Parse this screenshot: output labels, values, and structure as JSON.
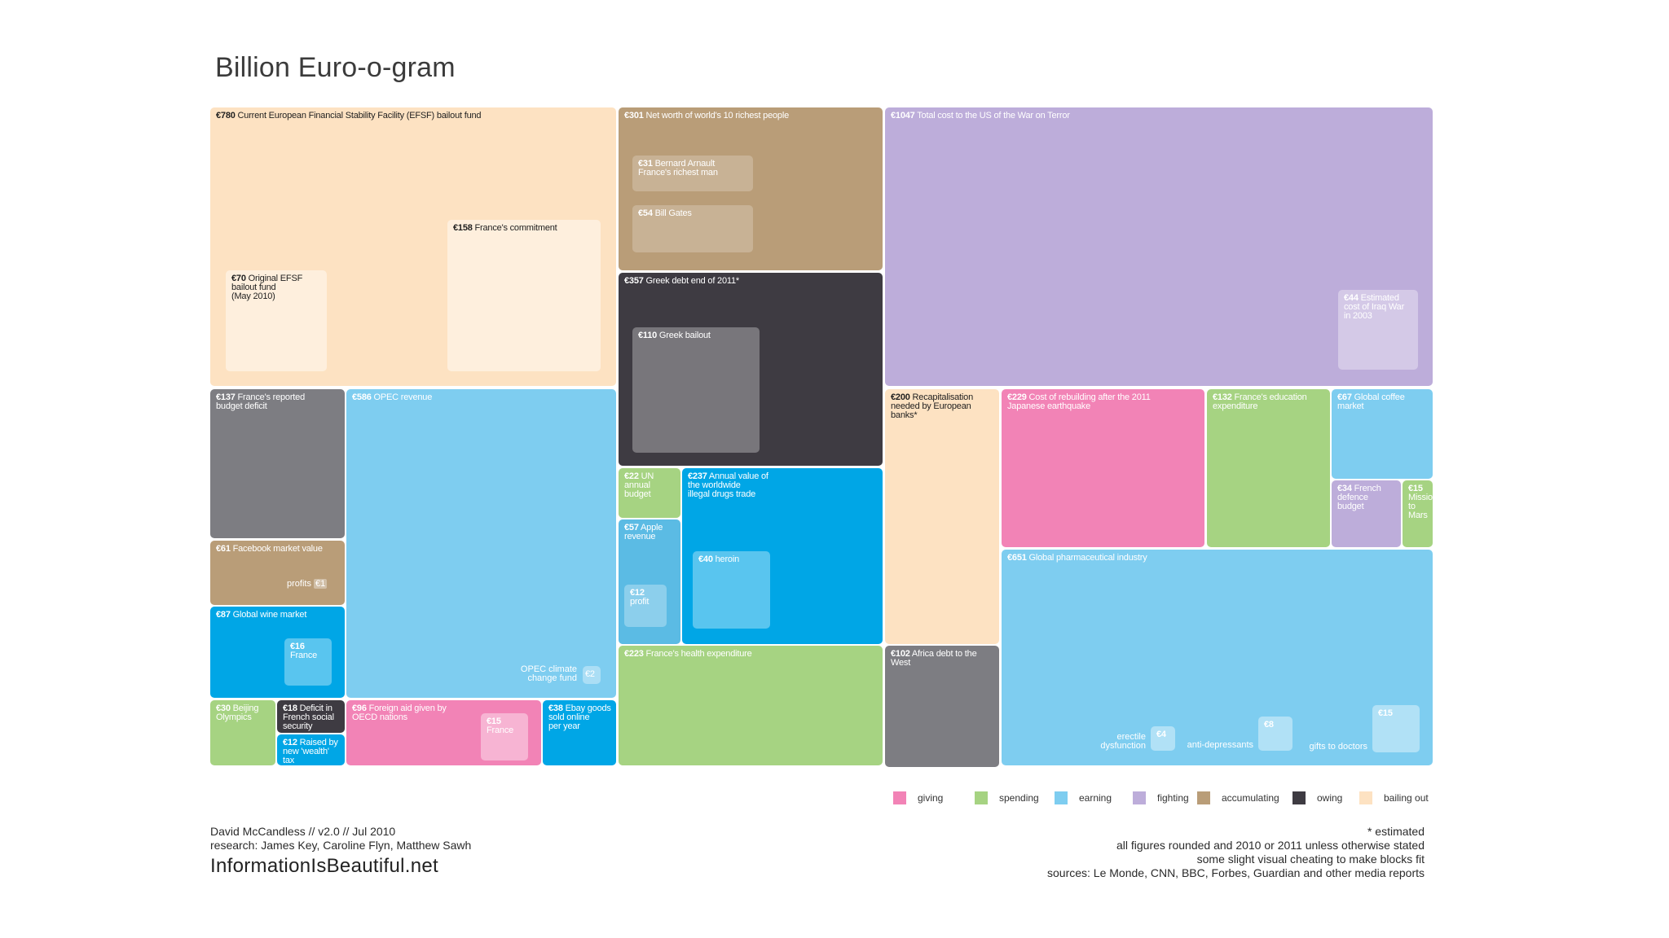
{
  "title": "Billion Euro-o-gram",
  "colors": {
    "giving": "#f283b6",
    "spending": "#a6d382",
    "earning": "#7ecdf0",
    "fighting": "#bdadda",
    "accumulating": "#b99d78",
    "owing": "#3e3b42",
    "bailing_out": "#fde2c2",
    "grey": "#7d7d82",
    "cyan": "#00a6e6"
  },
  "chart_data": {
    "type": "treemap",
    "title": "Billion Euro-o-gram",
    "unit": "€ billion",
    "blocks": [
      {
        "amount": "€780",
        "label": "Current European Financial Stability Facility (EFSF) bailout fund",
        "category": "bailing out",
        "value": 780
      },
      {
        "amount": "€158",
        "label": "France's commitment",
        "category": "bailing out",
        "value": 158
      },
      {
        "amount": "€70",
        "label": "Original EFSF bailout fund (May 2010)",
        "category": "bailing out",
        "value": 70
      },
      {
        "amount": "€301",
        "label": "Net worth of world's 10 richest people",
        "category": "accumulating",
        "value": 301
      },
      {
        "amount": "€31",
        "label": "Bernard Arnault France's richest man",
        "category": "accumulating",
        "value": 31
      },
      {
        "amount": "€54",
        "label": "Bill Gates",
        "category": "accumulating",
        "value": 54
      },
      {
        "amount": "€357",
        "label": "Greek debt end of 2011*",
        "category": "owing",
        "value": 357
      },
      {
        "amount": "€110",
        "label": "Greek bailout",
        "category": "bailing out",
        "value": 110
      },
      {
        "amount": "€1047",
        "label": "Total cost to the US of the War on Terror",
        "category": "fighting",
        "value": 1047
      },
      {
        "amount": "€44",
        "label": "Estimated cost of Iraq War in 2003",
        "category": "fighting",
        "value": 44
      },
      {
        "amount": "€137",
        "label": "France's reported budget deficit",
        "category": "owing",
        "value": 137
      },
      {
        "amount": "€586",
        "label": "OPEC revenue",
        "category": "earning",
        "value": 586
      },
      {
        "amount": "€2",
        "label": "OPEC climate change fund",
        "category": "giving",
        "value": 2
      },
      {
        "amount": "€61",
        "label": "Facebook market value",
        "category": "accumulating",
        "value": 61
      },
      {
        "amount": "€1",
        "label": "profits",
        "category": "earning",
        "value": 1
      },
      {
        "amount": "€87",
        "label": "Global wine market",
        "category": "earning",
        "value": 87
      },
      {
        "amount": "€16",
        "label": "France",
        "category": "earning",
        "value": 16
      },
      {
        "amount": "€30",
        "label": "Beijing Olympics",
        "category": "spending",
        "value": 30
      },
      {
        "amount": "€18",
        "label": "Deficit in French social security",
        "category": "owing",
        "value": 18
      },
      {
        "amount": "€12",
        "label": "Raised by new 'wealth' tax",
        "category": "earning",
        "value": 12
      },
      {
        "amount": "€96",
        "label": "Foreign aid given by OECD nations",
        "category": "giving",
        "value": 96
      },
      {
        "amount": "€15",
        "label": "France",
        "category": "giving",
        "value": 15
      },
      {
        "amount": "€38",
        "label": "Ebay goods sold online per year",
        "category": "earning",
        "value": 38
      },
      {
        "amount": "€22",
        "label": "UN annual budget",
        "category": "spending",
        "value": 22
      },
      {
        "amount": "€57",
        "label": "Apple revenue",
        "category": "earning",
        "value": 57
      },
      {
        "amount": "€12",
        "label": "profit",
        "category": "earning",
        "value": 12
      },
      {
        "amount": "€237",
        "label": "Annual value of the worldwide illegal drugs trade",
        "category": "earning",
        "value": 237
      },
      {
        "amount": "€40",
        "label": "heroin",
        "category": "earning",
        "value": 40
      },
      {
        "amount": "€223",
        "label": "France's health expenditure",
        "category": "spending",
        "value": 223
      },
      {
        "amount": "€200",
        "label": "Recapitalisation needed by European banks*",
        "category": "bailing out",
        "value": 200
      },
      {
        "amount": "€102",
        "label": "Africa debt to the West",
        "category": "owing",
        "value": 102
      },
      {
        "amount": "€229",
        "label": "Cost of rebuilding after the 2011 Japanese earthquake",
        "category": "giving",
        "value": 229
      },
      {
        "amount": "€132",
        "label": "France's education expenditure",
        "category": "spending",
        "value": 132
      },
      {
        "amount": "€67",
        "label": "Global coffee market",
        "category": "earning",
        "value": 67
      },
      {
        "amount": "€34",
        "label": "French defence budget",
        "category": "fighting",
        "value": 34
      },
      {
        "amount": "€15",
        "label": "Mission to Mars",
        "category": "spending",
        "value": 15
      },
      {
        "amount": "€651",
        "label": "Global pharmaceutical industry",
        "category": "earning",
        "value": 651
      },
      {
        "amount": "€4",
        "label": "erectile dysfunction",
        "category": "earning",
        "value": 4
      },
      {
        "amount": "€8",
        "label": "anti-depressants",
        "category": "earning",
        "value": 8
      },
      {
        "amount": "€15",
        "label": "gifts to doctors",
        "category": "earning",
        "value": 15
      }
    ],
    "legend": [
      "giving",
      "spending",
      "earning",
      "fighting",
      "accumulating",
      "owing",
      "bailing out"
    ]
  },
  "text": {
    "efsf": "Current European Financial Stability Facility (EFSF) bailout fund",
    "efsf_amt": "€780",
    "france_commit": "France's commitment",
    "france_commit_amt": "€158",
    "orig_efsf": "Original EFSF\nbailout fund\n(May 2010)",
    "orig_efsf_amt": "€70",
    "richest": "Net worth of world's 10 richest people",
    "richest_amt": "€301",
    "arnault": "Bernard Arnault\nFrance's richest man",
    "arnault_amt": "€31",
    "gates": "Bill Gates",
    "gates_amt": "€54",
    "greek_debt": "Greek debt end of 2011*",
    "greek_debt_amt": "€357",
    "greek_bailout": "Greek bailout",
    "greek_bailout_amt": "€110",
    "war_terror": "Total cost to the US of the War on Terror",
    "war_terror_amt": "€1047",
    "iraq": "Estimated\ncost of Iraq War\nin 2003",
    "iraq_amt": "€44",
    "fr_deficit": "France's reported\nbudget deficit",
    "fr_deficit_amt": "€137",
    "opec": "OPEC revenue",
    "opec_amt": "€586",
    "opec_climate": "OPEC climate\nchange fund",
    "opec_climate_amt": "€2",
    "facebook": "Facebook market value",
    "facebook_amt": "€61",
    "profits": "profits",
    "profits_amt": "€1",
    "wine": "Global wine market",
    "wine_amt": "€87",
    "wine_fr": "France",
    "wine_fr_amt": "€16",
    "beijing": "Beijing\nOlympics",
    "beijing_amt": "€30",
    "secu": "Deficit in\nFrench social\nsecurity",
    "secu_amt": "€18",
    "wealth": "Raised by\nnew 'wealth'\ntax",
    "wealth_amt": "€12",
    "aid": "Foreign aid given by\nOECD nations",
    "aid_amt": "€96",
    "aid_fr": "France",
    "aid_fr_amt": "€15",
    "ebay": "Ebay goods\nsold online\nper year",
    "ebay_amt": "€38",
    "un": "UN\nannual\nbudget",
    "un_amt": "€22",
    "apple": "Apple\nrevenue",
    "apple_amt": "€57",
    "apple_profit": "profit",
    "apple_profit_amt": "€12",
    "drugs": "Annual value of\nthe worldwide\nillegal drugs trade",
    "drugs_amt": "€237",
    "heroin": "heroin",
    "heroin_amt": "€40",
    "health": "France's health expenditure",
    "health_amt": "€223",
    "recap": "Recapitalisation\nneeded by European\nbanks*",
    "recap_amt": "€200",
    "africa": "Africa debt to the\nWest",
    "africa_amt": "€102",
    "japan": "Cost of rebuilding after the 2011\nJapanese earthquake",
    "japan_amt": "€229",
    "education": "France's education\nexpenditure",
    "education_amt": "€132",
    "coffee": "Global coffee\nmarket",
    "coffee_amt": "€67",
    "defence": "French\ndefence\nbudget",
    "defence_amt": "€34",
    "mars": "Mission\nto\nMars",
    "mars_amt": "€15",
    "pharma": "Global pharmaceutical industry",
    "pharma_amt": "€651",
    "erectile": "erectile\ndysfunction",
    "erectile_amt": "€4",
    "antidep": "anti-depressants",
    "antidep_amt": "€8",
    "gifts": "gifts to doctors",
    "gifts_amt": "€15"
  },
  "legend": [
    {
      "label": "giving",
      "color": "#f283b6"
    },
    {
      "label": "spending",
      "color": "#a6d382"
    },
    {
      "label": "earning",
      "color": "#7ecdf0"
    },
    {
      "label": "fighting",
      "color": "#bdadda"
    },
    {
      "label": "accumulating",
      "color": "#b99d78"
    },
    {
      "label": "owing",
      "color": "#3e3b42"
    },
    {
      "label": "bailing out",
      "color": "#fde2c2"
    }
  ],
  "footer": {
    "credit": "David McCandless // v2.0 // Jul 2010",
    "research": "research: James Key, Caroline Flyn, Matthew Sawh",
    "site": "InformationIsBeautiful.net",
    "note1": "* estimated",
    "note2": "all figures rounded and 2010 or 2011 unless otherwise stated",
    "note3": "some slight visual cheating to make blocks fit",
    "note4": "sources: Le Monde, CNN, BBC, Forbes, Guardian and other media reports"
  }
}
